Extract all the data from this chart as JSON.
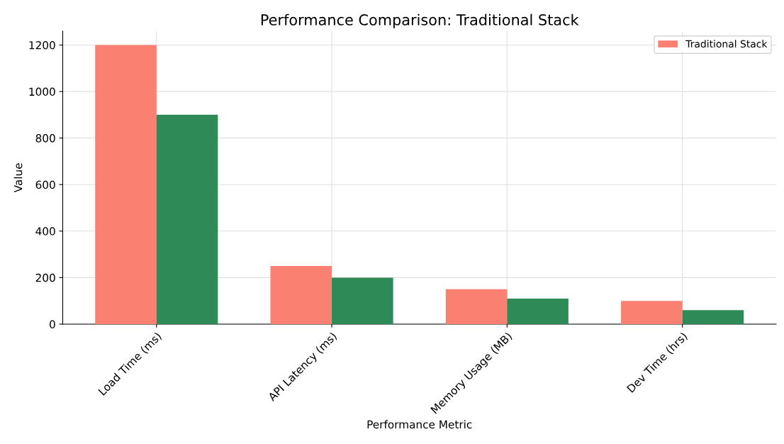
{
  "chart_data": {
    "type": "bar",
    "title": "Performance Comparison: Traditional Stack",
    "xlabel": "Performance Metric",
    "ylabel": "Value",
    "categories": [
      "Load Time (ms)",
      "API Latency (ms)",
      "Memory Usage (MB)",
      "Dev Time (hrs)"
    ],
    "series": [
      {
        "name": "Traditional Stack",
        "color": "#fa8072",
        "values": [
          1200,
          250,
          150,
          100
        ]
      },
      {
        "color": "#2e8b57",
        "values": [
          900,
          200,
          110,
          60
        ]
      }
    ],
    "ylim": [
      0,
      1260
    ],
    "yticks": [
      0,
      200,
      400,
      600,
      800,
      1000,
      1200
    ],
    "grid": true,
    "legend": "top right"
  }
}
